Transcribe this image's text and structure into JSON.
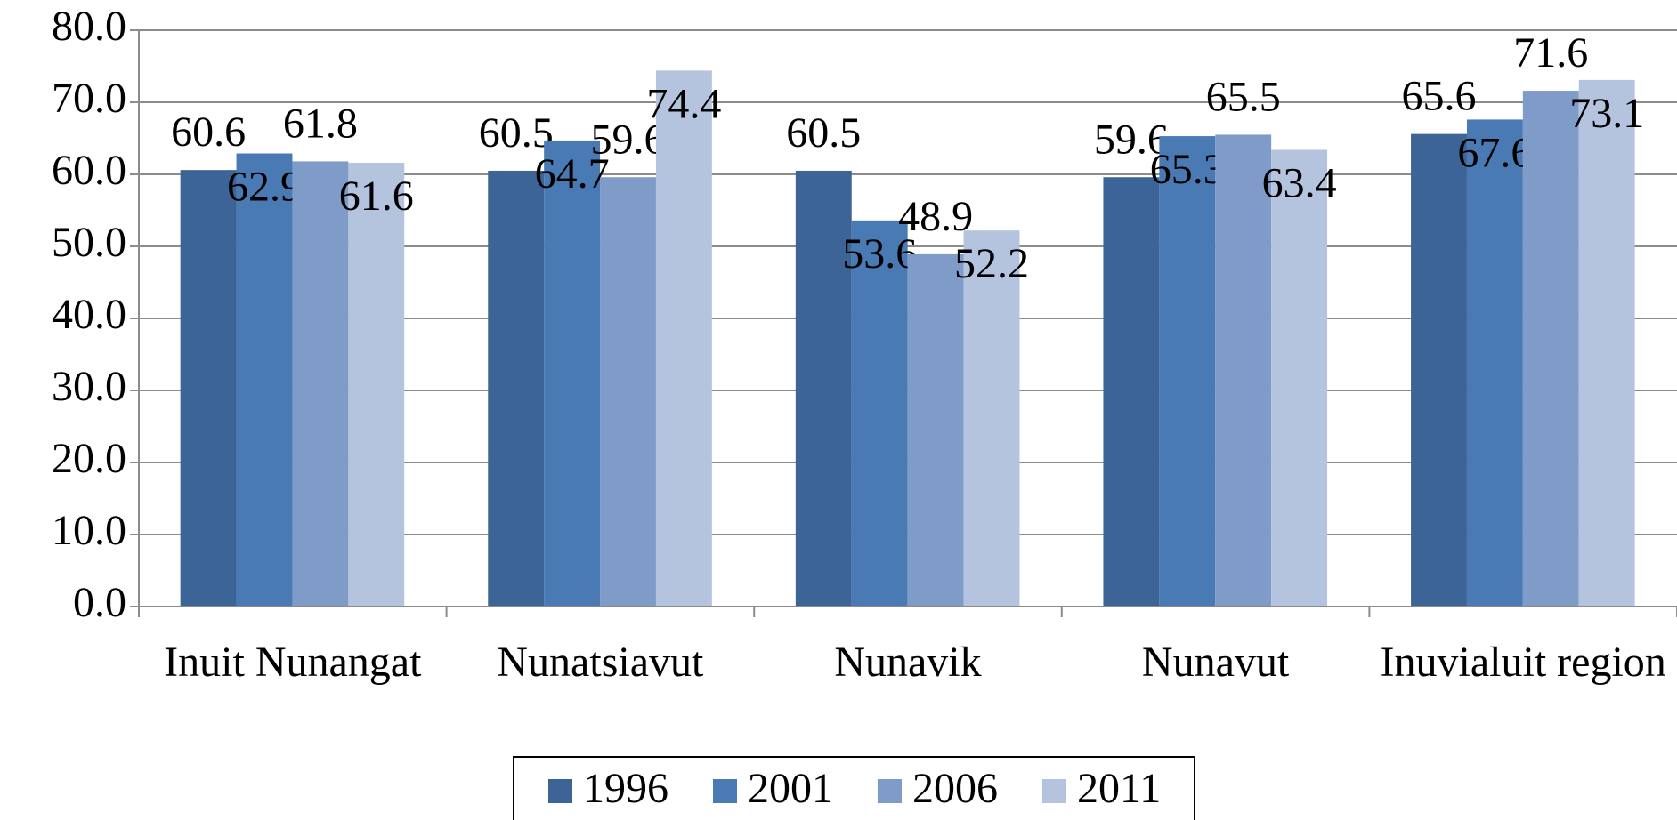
{
  "chart_data": {
    "type": "bar",
    "categories": [
      "Inuit Nunangat",
      "Nunatsiavut",
      "Nunavik",
      "Nunavut",
      "Inuvialuit region"
    ],
    "series": [
      {
        "name": "1996",
        "color": "#3d6496",
        "values": [
          60.6,
          60.5,
          60.5,
          59.6,
          65.6
        ]
      },
      {
        "name": "2001",
        "color": "#4a7ab3",
        "values": [
          62.9,
          64.7,
          53.6,
          65.3,
          67.6
        ]
      },
      {
        "name": "2006",
        "color": "#7f9cc9",
        "values": [
          61.8,
          59.6,
          48.9,
          65.5,
          71.6
        ]
      },
      {
        "name": "2011",
        "color": "#b4c4df",
        "values": [
          61.6,
          74.4,
          52.2,
          63.4,
          73.1
        ]
      }
    ],
    "ylim": [
      0,
      80
    ],
    "yticks": [
      {
        "value": 0,
        "label": "0.0"
      },
      {
        "value": 10,
        "label": "10.0"
      },
      {
        "value": 20,
        "label": "20.0"
      },
      {
        "value": 30,
        "label": "30.0"
      },
      {
        "value": 40,
        "label": "40.0"
      },
      {
        "value": 50,
        "label": "50.0"
      },
      {
        "value": 60,
        "label": "60.0"
      },
      {
        "value": 70,
        "label": "70.0"
      },
      {
        "value": 80,
        "label": "80.0"
      }
    ],
    "grid": true,
    "legend": "bottom"
  }
}
